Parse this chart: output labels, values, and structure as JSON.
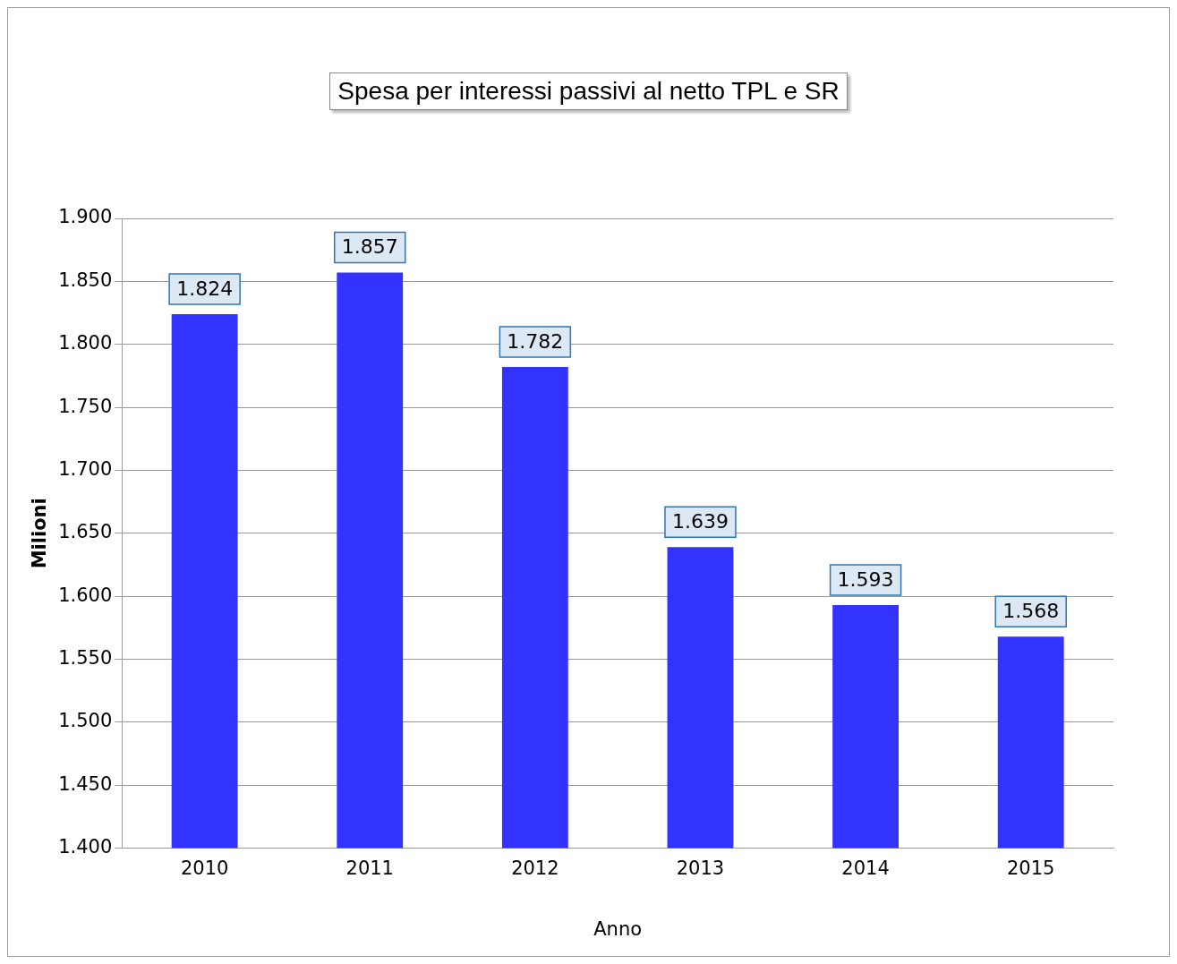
{
  "chart_data": {
    "type": "bar",
    "title": "Spesa per interessi passivi al netto TPL e SR",
    "xlabel": "Anno",
    "ylabel": "Milioni",
    "categories": [
      "2010",
      "2011",
      "2012",
      "2013",
      "2014",
      "2015"
    ],
    "values": [
      1824,
      1857,
      1782,
      1639,
      1593,
      1568
    ],
    "color": "#3333ff",
    "value_labels": [
      "1.824",
      "1.857",
      "1.782",
      "1.639",
      "1.593",
      "1.568"
    ],
    "ylim": [
      1400,
      1900
    ],
    "yticks": [
      {
        "value": 1400,
        "label": "1.400"
      },
      {
        "value": 1450,
        "label": "1.450"
      },
      {
        "value": 1500,
        "label": "1.500"
      },
      {
        "value": 1550,
        "label": "1.550"
      },
      {
        "value": 1600,
        "label": "1.600"
      },
      {
        "value": 1650,
        "label": "1.650"
      },
      {
        "value": 1700,
        "label": "1.700"
      },
      {
        "value": 1750,
        "label": "1.750"
      },
      {
        "value": 1800,
        "label": "1.800"
      },
      {
        "value": 1850,
        "label": "1.850"
      },
      {
        "value": 1900,
        "label": "1.900"
      }
    ],
    "grid": "y",
    "legend": false
  }
}
